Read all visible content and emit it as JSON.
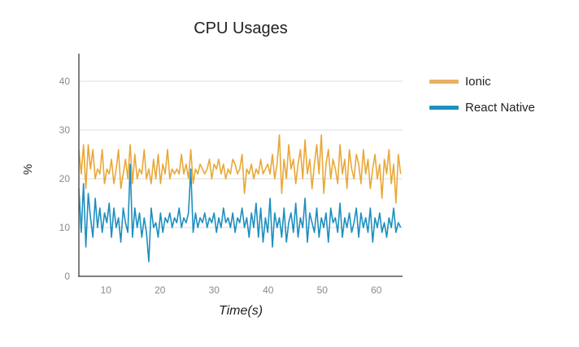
{
  "chart_data": {
    "type": "line",
    "title": "CPU Usages",
    "xlabel": "Time(s)",
    "ylabel": "%",
    "xlim": [
      5,
      64.5
    ],
    "ylim": [
      0,
      45
    ],
    "x_ticks": [
      10,
      20,
      30,
      40,
      50,
      60
    ],
    "y_ticks": [
      0,
      10,
      20,
      30,
      40
    ],
    "grid": {
      "horizontal": true,
      "vertical": false
    },
    "legend_position": "right",
    "x_step": 0.5,
    "series": [
      {
        "name": "Ionic",
        "color": "#e8a838",
        "values": [
          26,
          21,
          27,
          18,
          27,
          22,
          26,
          20,
          22,
          21,
          26,
          19,
          22,
          21,
          24,
          19,
          22,
          26,
          18,
          21,
          24,
          20,
          27,
          19,
          25,
          20,
          22,
          21,
          26,
          20,
          22,
          19,
          24,
          20,
          25,
          19,
          23,
          21,
          26,
          20,
          22,
          21,
          22,
          21,
          25,
          21,
          23,
          20,
          26,
          19,
          22,
          21,
          23,
          22,
          21,
          22,
          24,
          20,
          23,
          22,
          24,
          21,
          23,
          20,
          22,
          21,
          24,
          23,
          21,
          22,
          25,
          17,
          22,
          21,
          23,
          20,
          22,
          21,
          24,
          21,
          22,
          23,
          21,
          25,
          20,
          23,
          29,
          17,
          24,
          20,
          27,
          22,
          24,
          19,
          23,
          26,
          20,
          28,
          21,
          24,
          18,
          23,
          27,
          21,
          29,
          17,
          23,
          26,
          20,
          24,
          22,
          19,
          27,
          21,
          24,
          18,
          26,
          22,
          20,
          25,
          23,
          19,
          26,
          21,
          24,
          18,
          22,
          25,
          20,
          23,
          16,
          24,
          21,
          26,
          19,
          23,
          15,
          25,
          21
        ]
      },
      {
        "name": "React Native",
        "color": "#1e8fbf",
        "values": [
          18,
          9,
          19,
          6,
          17,
          12,
          8,
          16,
          10,
          14,
          9,
          13,
          11,
          15,
          8,
          14,
          10,
          12,
          7,
          14,
          11,
          9,
          23,
          8,
          14,
          10,
          13,
          8,
          12,
          9,
          3,
          14,
          10,
          11,
          8,
          13,
          9,
          12,
          11,
          13,
          10,
          12,
          11,
          14,
          10,
          12,
          11,
          13,
          22,
          9,
          13,
          10,
          12,
          11,
          13,
          10,
          12,
          11,
          13,
          9,
          12,
          10,
          14,
          11,
          12,
          10,
          13,
          9,
          12,
          11,
          14,
          10,
          12,
          8,
          13,
          10,
          15,
          8,
          14,
          7,
          12,
          9,
          16,
          6,
          13,
          10,
          12,
          8,
          14,
          7,
          11,
          13,
          9,
          15,
          8,
          12,
          10,
          16,
          7,
          13,
          11,
          9,
          14,
          8,
          12,
          10,
          13,
          7,
          14,
          11,
          12,
          9,
          15,
          8,
          12,
          10,
          13,
          9,
          11,
          14,
          8,
          13,
          10,
          12,
          9,
          14,
          7,
          12,
          10,
          13,
          9,
          11,
          8,
          12,
          10,
          14,
          9,
          11,
          10
        ]
      }
    ]
  },
  "legend": {
    "items": [
      {
        "label": "Ionic",
        "color": "#e8a838"
      },
      {
        "label": "React Native",
        "color": "#1e8fbf"
      }
    ]
  }
}
